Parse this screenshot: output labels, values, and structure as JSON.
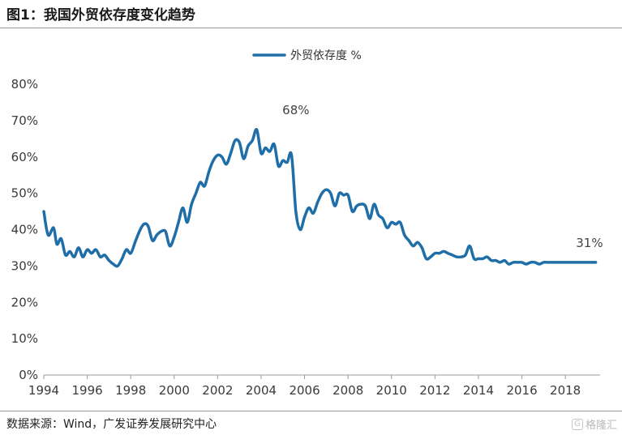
{
  "header": {
    "title": "图1：我国外贸依存度变化趋势"
  },
  "footer": {
    "source": "数据来源：Wind，广发证券发展研究中心",
    "watermark": "格隆汇"
  },
  "chart_data": {
    "type": "line",
    "title": "",
    "xlabel": "",
    "ylabel": "",
    "legend_position": "top-center",
    "grid": false,
    "color": "#1f6ea8",
    "xlim": [
      1994,
      2019.6
    ],
    "ylim": [
      0,
      80
    ],
    "x_ticks": [
      1994,
      1996,
      1998,
      2000,
      2002,
      2004,
      2006,
      2008,
      2010,
      2012,
      2014,
      2016,
      2018
    ],
    "y_ticks": [
      0,
      10,
      20,
      30,
      40,
      50,
      60,
      70,
      80
    ],
    "y_tick_labels": [
      "0%",
      "10%",
      "20%",
      "30%",
      "40%",
      "50%",
      "60%",
      "70%",
      "80%"
    ],
    "series": [
      {
        "name": "外贸依存度 %",
        "x": [
          1994.0,
          1994.2,
          1994.45,
          1994.6,
          1994.8,
          1995.0,
          1995.2,
          1995.4,
          1995.6,
          1995.8,
          1996.0,
          1996.2,
          1996.4,
          1996.6,
          1996.8,
          1997.0,
          1997.2,
          1997.4,
          1997.6,
          1997.8,
          1998.0,
          1998.2,
          1998.4,
          1998.6,
          1998.8,
          1999.0,
          1999.2,
          1999.4,
          1999.6,
          1999.8,
          2000.0,
          2000.2,
          2000.4,
          2000.6,
          2000.8,
          2001.0,
          2001.2,
          2001.4,
          2001.6,
          2001.8,
          2002.0,
          2002.2,
          2002.4,
          2002.6,
          2002.8,
          2003.0,
          2003.2,
          2003.4,
          2003.6,
          2003.8,
          2004.0,
          2004.2,
          2004.4,
          2004.6,
          2004.8,
          2005.0,
          2005.2,
          2005.4,
          2005.6,
          2005.8,
          2006.0,
          2006.2,
          2006.4,
          2006.6,
          2006.8,
          2007.0,
          2007.2,
          2007.4,
          2007.6,
          2007.8,
          2008.0,
          2008.2,
          2008.4,
          2008.6,
          2008.8,
          2009.0,
          2009.2,
          2009.4,
          2009.6,
          2009.8,
          2010.0,
          2010.2,
          2010.4,
          2010.6,
          2010.8,
          2011.0,
          2011.2,
          2011.4,
          2011.6,
          2011.8,
          2012.0,
          2012.2,
          2012.4,
          2012.6,
          2012.8,
          2013.0,
          2013.2,
          2013.4,
          2013.6,
          2013.8,
          2014.0,
          2014.2,
          2014.4,
          2014.6,
          2014.8,
          2015.0,
          2015.2,
          2015.4,
          2015.6,
          2015.8,
          2016.0,
          2016.2,
          2016.4,
          2016.6,
          2016.8,
          2017.0,
          2017.2,
          2017.4,
          2017.6,
          2017.8,
          2018.0,
          2018.2,
          2018.4,
          2018.6,
          2018.8,
          2019.0,
          2019.2,
          2019.4
        ],
        "values": [
          45.0,
          38.5,
          40.5,
          36.0,
          37.5,
          33.0,
          34.0,
          32.5,
          35.0,
          32.5,
          34.5,
          33.5,
          34.5,
          32.5,
          33.0,
          31.5,
          30.5,
          30.0,
          32.0,
          34.5,
          33.5,
          36.5,
          39.5,
          41.5,
          41.0,
          37.0,
          38.5,
          39.5,
          39.5,
          35.5,
          38.0,
          42.0,
          46.0,
          42.0,
          47.0,
          50.0,
          53.0,
          52.0,
          56.0,
          59.0,
          60.5,
          60.0,
          58.0,
          61.0,
          64.5,
          64.0,
          59.5,
          63.0,
          64.5,
          67.5,
          61.0,
          62.5,
          61.5,
          63.5,
          57.5,
          59.0,
          58.5,
          60.5,
          45.0,
          40.0,
          43.5,
          46.0,
          44.5,
          47.5,
          50.0,
          51.0,
          50.0,
          46.5,
          50.0,
          49.5,
          49.5,
          45.0,
          46.5,
          47.0,
          46.5,
          43.0,
          47.0,
          44.0,
          43.0,
          40.5,
          42.0,
          41.5,
          42.0,
          38.5,
          37.0,
          35.5,
          36.5,
          35.0,
          32.0,
          32.5,
          33.5,
          33.5,
          34.0,
          33.5,
          33.0,
          32.5,
          32.5,
          33.0,
          35.5,
          32.0,
          32.0,
          32.0,
          32.5,
          31.5,
          31.5,
          31.0,
          31.5,
          30.5,
          31.0,
          31.0,
          31.0,
          30.5,
          31.0,
          31.0,
          30.5,
          31.0,
          31.0,
          31.0,
          31.0,
          31.0,
          31.0,
          31.0,
          31.0,
          31.0,
          31.0,
          31.0,
          31.0,
          31.0
        ]
      }
    ],
    "annotations": [
      {
        "text": "68%",
        "x": 2005.6,
        "y": 67.5
      },
      {
        "text": "31%",
        "x": 2019.0,
        "y": 31.0
      }
    ]
  }
}
